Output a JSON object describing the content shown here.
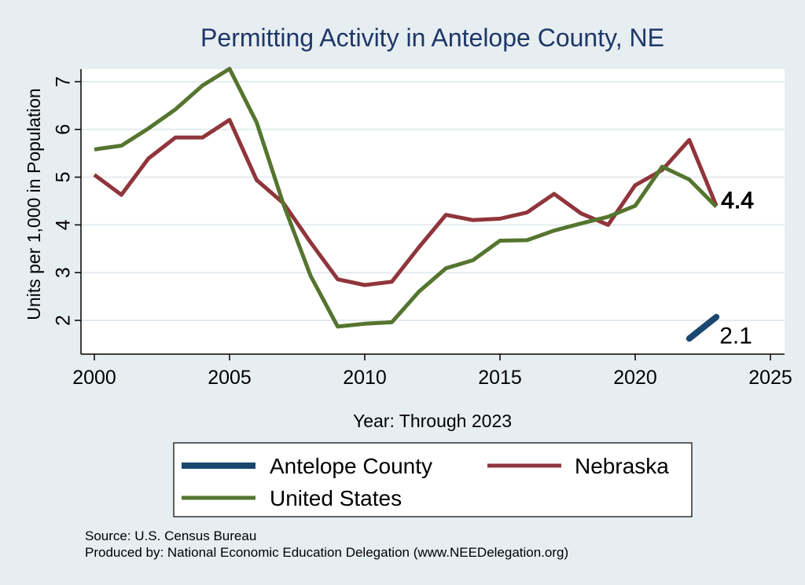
{
  "chart_data": {
    "type": "line",
    "title": "Permitting Activity in Antelope County, NE",
    "xlabel": "Year: Through 2023",
    "ylabel": "Units per 1,000 in Population",
    "xlim": [
      2000,
      2025
    ],
    "ylim": [
      1.4,
      7.4
    ],
    "x_ticks": [
      2000,
      2005,
      2010,
      2015,
      2020,
      2025
    ],
    "y_ticks": [
      2,
      3,
      4,
      5,
      6,
      7
    ],
    "grid": true,
    "legend_position": "bottom",
    "series": [
      {
        "name": "Antelope County",
        "color": "#1a476f",
        "x": [
          2022,
          2023
        ],
        "values": [
          1.62,
          2.07
        ]
      },
      {
        "name": "Nebraska",
        "color": "#90353b",
        "x": [
          2000,
          2001,
          2002,
          2003,
          2004,
          2005,
          2006,
          2007,
          2008,
          2009,
          2010,
          2011,
          2012,
          2013,
          2014,
          2015,
          2016,
          2017,
          2018,
          2019,
          2020,
          2021,
          2022,
          2023
        ],
        "values": [
          5.05,
          4.63,
          5.39,
          5.83,
          5.83,
          6.2,
          4.94,
          4.45,
          3.63,
          2.86,
          2.74,
          2.81,
          3.53,
          4.21,
          4.1,
          4.13,
          4.26,
          4.65,
          4.24,
          4.0,
          4.83,
          5.15,
          5.78,
          4.4
        ]
      },
      {
        "name": "United States",
        "color": "#55752f",
        "x": [
          2000,
          2001,
          2002,
          2003,
          2004,
          2005,
          2006,
          2007,
          2008,
          2009,
          2010,
          2011,
          2012,
          2013,
          2014,
          2015,
          2016,
          2017,
          2018,
          2019,
          2020,
          2021,
          2022,
          2023
        ],
        "values": [
          5.58,
          5.66,
          6.02,
          6.42,
          6.92,
          7.27,
          6.15,
          4.42,
          2.93,
          1.87,
          1.93,
          1.96,
          2.6,
          3.09,
          3.26,
          3.67,
          3.68,
          3.88,
          4.03,
          4.17,
          4.4,
          5.22,
          4.95,
          4.38
        ]
      }
    ],
    "end_labels": [
      {
        "text": "4.4",
        "series": "Nebraska"
      },
      {
        "text": "2.1",
        "series": "Antelope County"
      }
    ]
  },
  "notes": {
    "source": "Source: U.S. Census Bureau",
    "produced": "Produced by: National Economic Education Delegation (www.NEEDelegation.org)"
  }
}
